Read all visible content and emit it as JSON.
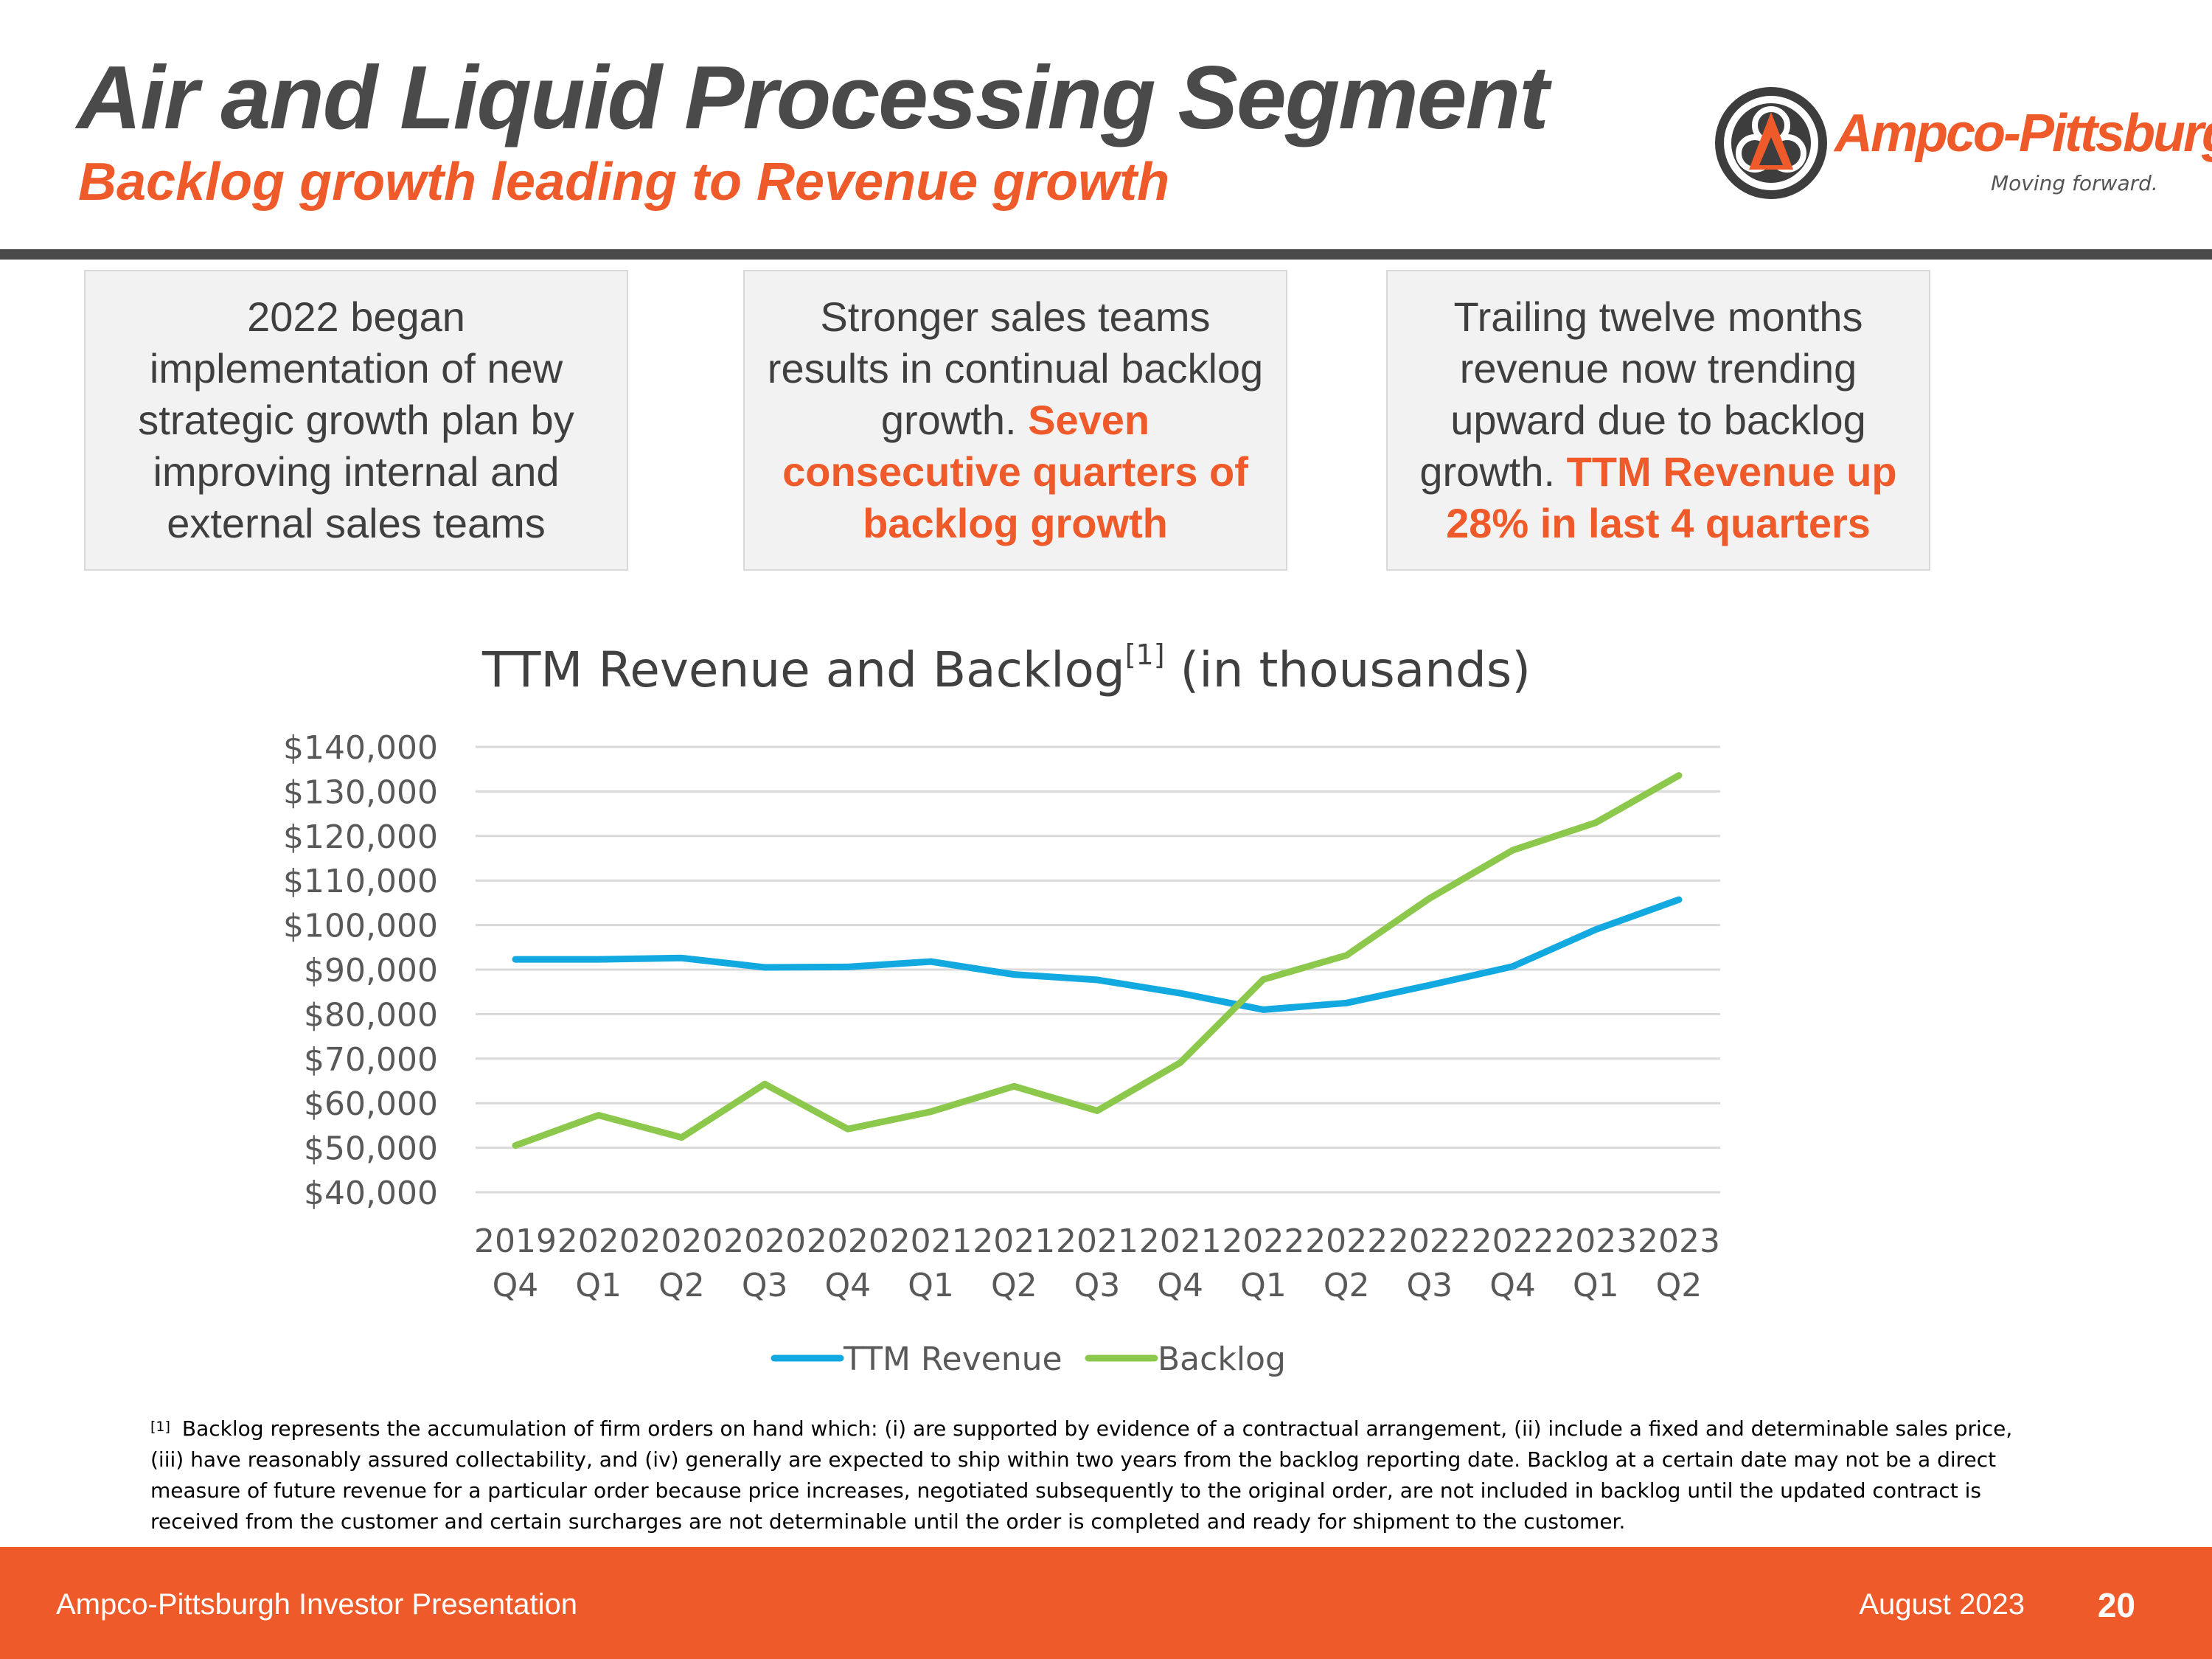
{
  "header": {
    "title": "Air and Liquid Processing Segment",
    "subtitle": "Backlog growth leading to Revenue growth"
  },
  "logo": {
    "name": "Ampco-Pittsburgh",
    "tagline": "Moving forward.",
    "icon": "ampco-tri-arrow-logo-icon"
  },
  "callouts": [
    {
      "text": "2022 began implementation of new strategic growth plan by improving internal and external sales teams",
      "highlight": ""
    },
    {
      "text": "Stronger sales teams results in continual backlog growth.",
      "highlight": "Seven consecutive quarters of backlog growth"
    },
    {
      "text": "Trailing twelve months revenue now trending upward due to backlog growth.",
      "highlight": "TTM Revenue up 28% in last 4 quarters"
    }
  ],
  "chart_data": {
    "type": "line",
    "title": "TTM Revenue and Backlog",
    "title_sup": "[1]",
    "title_suffix": "(in thousands)",
    "xlabel": "",
    "ylabel": "",
    "categories": [
      [
        "2019",
        "Q4"
      ],
      [
        "2020",
        "Q1"
      ],
      [
        "2020",
        "Q2"
      ],
      [
        "2020",
        "Q3"
      ],
      [
        "2020",
        "Q4"
      ],
      [
        "2021",
        "Q1"
      ],
      [
        "2021",
        "Q2"
      ],
      [
        "2021",
        "Q3"
      ],
      [
        "2021",
        "Q4"
      ],
      [
        "2022",
        "Q1"
      ],
      [
        "2022",
        "Q2"
      ],
      [
        "2022",
        "Q3"
      ],
      [
        "2022",
        "Q4"
      ],
      [
        "2023",
        "Q1"
      ],
      [
        "2023",
        "Q2"
      ]
    ],
    "ylim": [
      40000,
      140000
    ],
    "yticks": [
      40000,
      50000,
      60000,
      70000,
      80000,
      90000,
      100000,
      110000,
      120000,
      130000,
      140000
    ],
    "ytick_labels": [
      "$40,000",
      "$50,000",
      "$60,000",
      "$70,000",
      "$80,000",
      "$90,000",
      "$100,000",
      "$110,000",
      "$120,000",
      "$130,000",
      "$140,000"
    ],
    "grid": true,
    "legend_position": "bottom",
    "series": [
      {
        "name": "TTM Revenue",
        "color": "#12a8e0",
        "values": [
          92300,
          92300,
          92600,
          90500,
          90600,
          91800,
          88900,
          87700,
          84700,
          81000,
          82500,
          86500,
          90700,
          99000,
          105700
        ]
      },
      {
        "name": "Backlog",
        "color": "#8cc84b",
        "values": [
          50500,
          57300,
          52300,
          64300,
          54200,
          58100,
          63800,
          58300,
          69100,
          87800,
          93200,
          106000,
          116800,
          123000,
          133600
        ]
      }
    ]
  },
  "footnote": {
    "marker": "[1]",
    "text": "Backlog represents the accumulation of firm orders on hand which: (i) are supported by evidence of a contractual arrangement, (ii) include a fixed and determinable sales price, (iii) have reasonably assured collectability, and (iv) generally are expected to ship within two years from the backlog reporting date. Backlog at a certain date may not be a direct measure of future revenue for a particular order because price increases, negotiated subsequently to the original order, are not included in backlog until the updated contract is received from the customer and certain surcharges are not determinable until the order is completed and ready for shipment to the customer."
  },
  "footer": {
    "left": "Ampco-Pittsburgh Investor Presentation",
    "date": "August 2023",
    "page": "20"
  },
  "colors": {
    "accent": "#ef5a2a",
    "title_gray": "#4a4a4a",
    "callout_bg": "#f2f2f2"
  }
}
